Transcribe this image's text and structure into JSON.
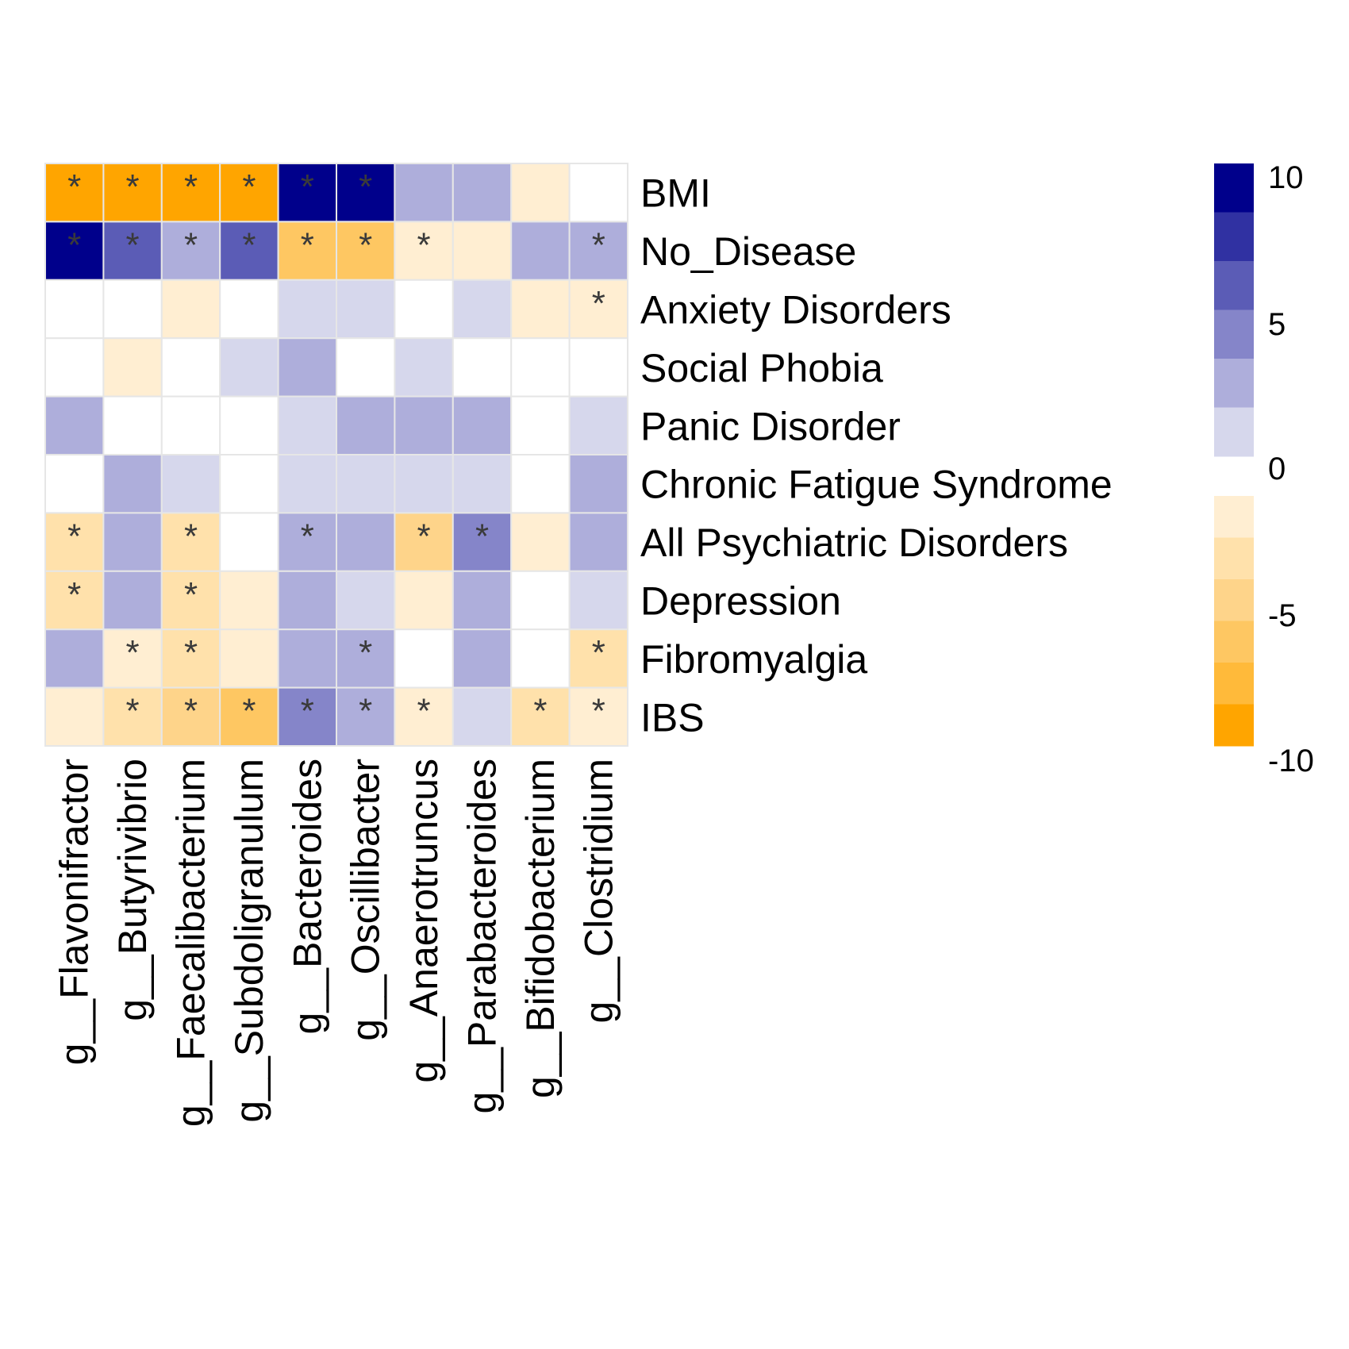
{
  "chart_data": {
    "type": "heatmap",
    "title": "",
    "xlabel": "",
    "ylabel": "",
    "rows": [
      "BMI",
      "No_Disease",
      "Anxiety Disorders",
      "Social Phobia",
      "Panic Disorder",
      "Chronic Fatigue Syndrome",
      "All Psychiatric Disorders",
      "Depression",
      "Fibromyalgia",
      "IBS"
    ],
    "columns": [
      "g__Flavonifractor",
      "g__Butyrivibrio",
      "g__Faecalibacterium",
      "g__Subdoligranulum",
      "g__Bacteroides",
      "g__Oscillibacter",
      "g__Anaerotruncus",
      "g__Parabacteroides",
      "g__Bifidobacterium",
      "g__Clostridium"
    ],
    "values": [
      [
        -10,
        -10,
        -10,
        -10,
        10,
        10,
        2,
        2,
        -1,
        0
      ],
      [
        9,
        6,
        2,
        6,
        -6,
        -6,
        -1,
        -1,
        2,
        2
      ],
      [
        0,
        0,
        -1,
        0,
        1,
        1,
        0,
        1,
        -1,
        -1
      ],
      [
        0,
        -1,
        0,
        1,
        2,
        0,
        1,
        0,
        0,
        0
      ],
      [
        2,
        0,
        0,
        0,
        1,
        2,
        2,
        2,
        0,
        1
      ],
      [
        0,
        2,
        1,
        0,
        1,
        1,
        1,
        1,
        0,
        2
      ],
      [
        -3,
        2,
        -2,
        0,
        2,
        2,
        -5,
        4,
        -1,
        2
      ],
      [
        -3,
        2,
        -3,
        -1,
        2,
        1,
        -1,
        2,
        0,
        1
      ],
      [
        2,
        -1,
        -3,
        -1,
        2,
        2,
        0,
        2,
        0,
        -3
      ],
      [
        -1,
        -2,
        -4,
        -6,
        4,
        2,
        -1,
        1,
        -3,
        -1
      ]
    ],
    "significant": [
      [
        1,
        1,
        1,
        1,
        1,
        1,
        0,
        0,
        0,
        0
      ],
      [
        1,
        1,
        1,
        1,
        1,
        1,
        1,
        0,
        0,
        1
      ],
      [
        0,
        0,
        0,
        0,
        0,
        0,
        0,
        0,
        0,
        1
      ],
      [
        0,
        0,
        0,
        0,
        0,
        0,
        0,
        0,
        0,
        0
      ],
      [
        0,
        0,
        0,
        0,
        0,
        0,
        0,
        0,
        0,
        0
      ],
      [
        0,
        0,
        0,
        0,
        0,
        0,
        0,
        0,
        0,
        0
      ],
      [
        1,
        0,
        1,
        0,
        1,
        0,
        1,
        1,
        0,
        0
      ],
      [
        1,
        0,
        1,
        0,
        0,
        0,
        0,
        0,
        0,
        0
      ],
      [
        0,
        1,
        1,
        0,
        0,
        1,
        0,
        0,
        0,
        1
      ],
      [
        0,
        1,
        1,
        1,
        1,
        1,
        1,
        0,
        1,
        1
      ]
    ],
    "significance_marker": "*",
    "scale_range": [
      -10,
      10
    ],
    "legend_ticks": [
      "10",
      "5",
      "0",
      "-5",
      "-10"
    ],
    "legend_placement": "right",
    "grid": true,
    "positive_colors": [
      "#d6d7ec",
      "#aeaedb",
      "#8585c9",
      "#5b5cb6",
      "#3031a2",
      "#00008b"
    ],
    "negative_colors": [
      "#ffeed2",
      "#ffe1ab",
      "#fed48a",
      "#fec762",
      "#ffba3a",
      "#ffa500"
    ],
    "zero_color": "#ffffff",
    "grid_color": "#e6e6e6"
  }
}
